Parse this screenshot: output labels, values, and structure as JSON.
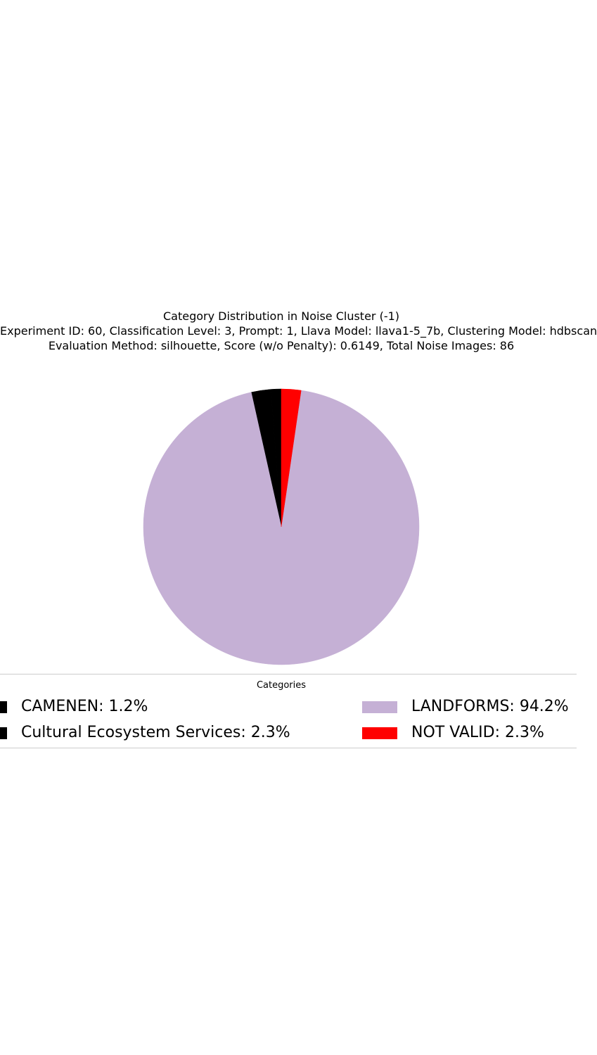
{
  "chart_data": {
    "type": "pie",
    "title_lines": [
      "Category Distribution in Noise Cluster (-1)",
      "Experiment ID: 60, Classification Level: 3, Prompt: 1, Llava Model: llava1-5_7b, Clustering Model: hdbscan",
      "Evaluation Method: silhouette, Score (w/o Penalty): 0.6149, Total Noise Images: 86"
    ],
    "legend_title": "Categories",
    "legend_placement": "bottom",
    "slices": [
      {
        "label": "CAMENEN",
        "value": 1.2,
        "legend_text": "CAMENEN: 1.2%",
        "color": "#000000"
      },
      {
        "label": "Cultural Ecosystem Services",
        "value": 2.3,
        "legend_text": "Cultural Ecosystem Services: 2.3%",
        "color": "#000000"
      },
      {
        "label": "LANDFORMS",
        "value": 94.2,
        "legend_text": "LANDFORMS: 94.2%",
        "color": "#c5b0d5"
      },
      {
        "label": "NOT VALID",
        "value": 2.3,
        "legend_text": "NOT VALID: 2.3%",
        "color": "#ff0000"
      }
    ]
  }
}
